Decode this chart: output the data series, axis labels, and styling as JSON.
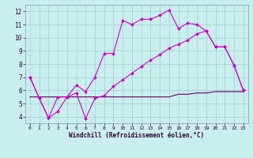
{
  "title": "",
  "xlabel": "Windchill (Refroidissement éolien,°C)",
  "ylabel": "",
  "xlim": [
    -0.5,
    23.5
  ],
  "ylim": [
    3.5,
    12.5
  ],
  "xticks": [
    0,
    1,
    2,
    3,
    4,
    5,
    6,
    7,
    8,
    9,
    10,
    11,
    12,
    13,
    14,
    15,
    16,
    17,
    18,
    19,
    20,
    21,
    22,
    23
  ],
  "yticks": [
    4,
    5,
    6,
    7,
    8,
    9,
    10,
    11,
    12
  ],
  "bg_color": "#c8eeed",
  "grid_color": "#a0cece",
  "line_color": "#cc00cc",
  "line1_x": [
    0,
    1,
    2,
    3,
    4,
    5,
    6,
    7,
    8,
    9,
    10,
    11,
    12,
    13,
    14,
    15,
    16,
    17,
    18,
    19,
    20,
    21,
    22,
    23
  ],
  "line1_y": [
    7.0,
    5.4,
    3.9,
    5.5,
    5.5,
    6.4,
    5.9,
    7.0,
    8.8,
    8.8,
    11.3,
    11.0,
    11.4,
    11.4,
    11.7,
    12.1,
    10.7,
    11.1,
    11.0,
    10.5,
    9.3,
    9.3,
    7.9,
    6.0
  ],
  "line2_x": [
    0,
    1,
    2,
    3,
    4,
    5,
    6,
    7,
    8,
    9,
    10,
    11,
    12,
    13,
    14,
    15,
    16,
    17,
    18,
    19,
    20,
    21,
    22,
    23
  ],
  "line2_y": [
    7.0,
    5.4,
    3.9,
    4.4,
    5.5,
    5.8,
    3.85,
    5.4,
    5.6,
    6.3,
    6.8,
    7.3,
    7.8,
    8.3,
    8.7,
    9.2,
    9.5,
    9.8,
    10.3,
    10.5,
    9.3,
    9.3,
    7.9,
    6.0
  ],
  "line3_x": [
    0,
    1,
    2,
    3,
    4,
    5,
    6,
    7,
    8,
    9,
    10,
    11,
    12,
    13,
    14,
    15,
    16,
    17,
    18,
    19,
    20,
    21,
    22,
    23
  ],
  "line3_y": [
    5.5,
    5.5,
    5.5,
    5.5,
    5.5,
    5.5,
    5.5,
    5.5,
    5.5,
    5.5,
    5.5,
    5.5,
    5.5,
    5.5,
    5.5,
    5.5,
    5.7,
    5.7,
    5.8,
    5.8,
    5.9,
    5.9,
    5.9,
    5.9
  ],
  "line_dark_color": "#660066"
}
